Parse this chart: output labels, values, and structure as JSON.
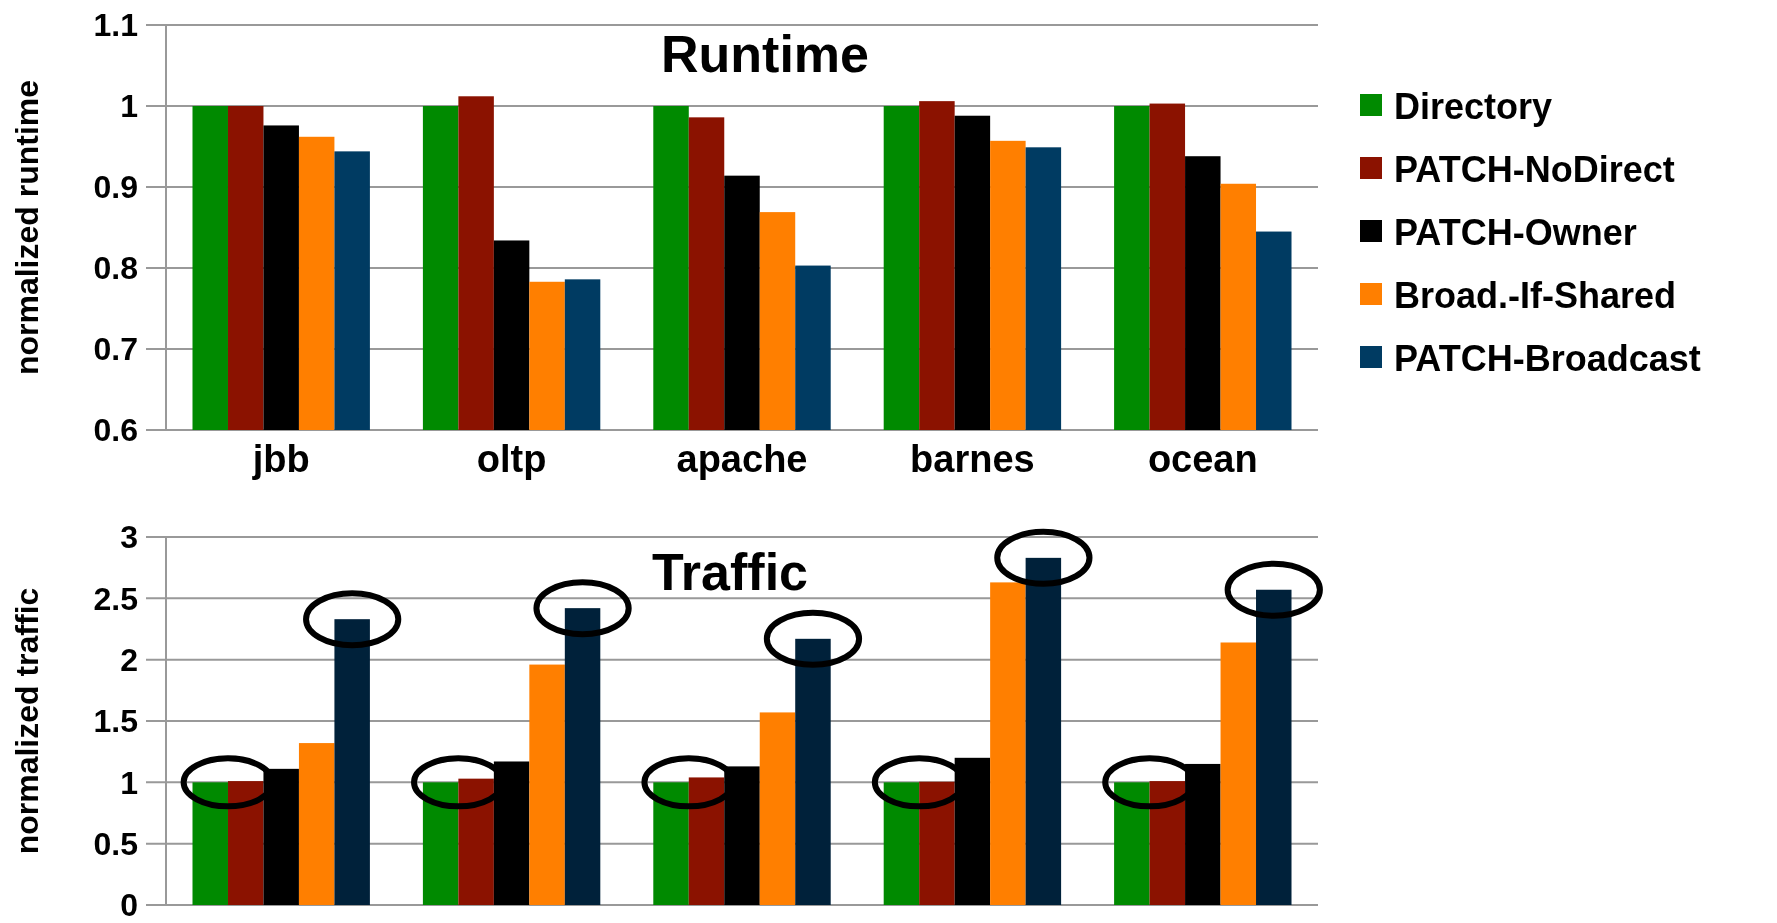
{
  "chart_data": [
    {
      "type": "bar",
      "title": "Runtime",
      "ylabel": "normalized runtime",
      "categories": [
        "jbb",
        "oltp",
        "apache",
        "barnes",
        "ocean"
      ],
      "ylim": [
        0.6,
        1.1
      ],
      "yticks": [
        0.6,
        0.7,
        0.8,
        0.9,
        1,
        1.1
      ],
      "grid": "y",
      "legend": "right",
      "series": [
        {
          "name": "Directory",
          "color": "#008a00",
          "values": [
            1,
            1,
            1,
            1,
            1
          ]
        },
        {
          "name": "PATCH-NoDirect",
          "color": "#8b1200",
          "values": [
            1,
            1.012,
            0.986,
            1.006,
            1.003
          ]
        },
        {
          "name": "PATCH-Owner",
          "color": "#000000",
          "values": [
            0.976,
            0.834,
            0.914,
            0.988,
            0.938
          ]
        },
        {
          "name": "Broad.-If-Shared",
          "color": "#ff7f00",
          "values": [
            0.962,
            0.783,
            0.869,
            0.957,
            0.904
          ]
        },
        {
          "name": "PATCH-Broadcast",
          "color": "#003b62",
          "values": [
            0.944,
            0.786,
            0.803,
            0.949,
            0.845
          ]
        }
      ]
    },
    {
      "type": "bar",
      "title": "Traffic",
      "ylabel": "normalized traffic",
      "categories": [
        null,
        null,
        null,
        null,
        null
      ],
      "tick_labels": "y",
      "ylim": [
        0,
        3
      ],
      "yticks": [
        0,
        0.5,
        1,
        1.5,
        2,
        2.5,
        3
      ],
      "grid": "y",
      "series": [
        {
          "color": "#008a00",
          "values": [
            1,
            1,
            1,
            1,
            1
          ]
        },
        {
          "color": "#8b1200",
          "values": [
            1.01,
            1.03,
            1.04,
            1.005,
            1.01
          ]
        },
        {
          "color": "#000000",
          "values": [
            1.11,
            1.17,
            1.13,
            1.2,
            1.15
          ]
        },
        {
          "color": "#ff7f00",
          "values": [
            1.32,
            1.96,
            1.57,
            2.63,
            2.14
          ]
        },
        {
          "color": "#00213a",
          "values": [
            2.33,
            2.42,
            2.17,
            2.83,
            2.57
          ]
        }
      ]
    }
  ]
}
